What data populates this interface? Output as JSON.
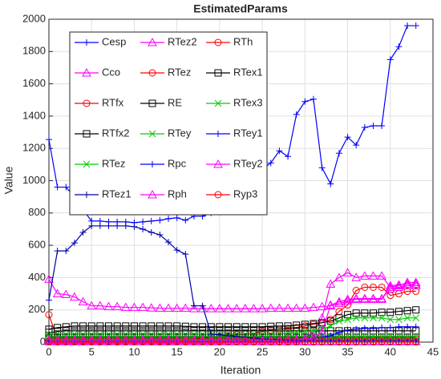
{
  "chart_data": {
    "type": "line",
    "title": "EstimatedParams",
    "x_label": "Iteration",
    "y_label": "Value",
    "x": [
      0,
      1,
      2,
      3,
      4,
      5,
      6,
      7,
      8,
      9,
      10,
      11,
      12,
      13,
      14,
      15,
      16,
      17,
      18,
      19,
      20,
      21,
      22,
      23,
      24,
      25,
      26,
      27,
      28,
      29,
      30,
      31,
      32,
      33,
      34,
      35,
      36,
      37,
      38,
      39,
      40,
      41,
      42,
      43
    ],
    "xlim": [
      0,
      45
    ],
    "xticks": [
      0,
      5,
      10,
      15,
      20,
      25,
      30,
      35,
      40,
      45
    ],
    "ylim": [
      0,
      2000
    ],
    "yticks": [
      0,
      200,
      400,
      600,
      800,
      1000,
      1200,
      1400,
      1600,
      1800,
      2000
    ],
    "grid": true,
    "legend": "upper left",
    "series": [
      {
        "name": "Cesp",
        "color": "#0000ff",
        "marker": "+",
        "values": [
          1255,
          960,
          960,
          900,
          820,
          750,
          750,
          745,
          745,
          745,
          740,
          745,
          750,
          755,
          765,
          770,
          755,
          780,
          780,
          800,
          805,
          820,
          845,
          880,
          945,
          1070,
          1110,
          1185,
          1150,
          1410,
          1490,
          1505,
          1080,
          980,
          1170,
          1270,
          1220,
          1330,
          1340,
          1340,
          1750,
          1830,
          1960,
          1960
        ]
      },
      {
        "name": "RTez2",
        "color": "#ff00ff",
        "marker": "^",
        "values": [
          10,
          10,
          10,
          10,
          10,
          12,
          12,
          12,
          12,
          12,
          12,
          12,
          12,
          12,
          12,
          12,
          12,
          12,
          12,
          12,
          12,
          14,
          14,
          14,
          15,
          15,
          16,
          18,
          20,
          25,
          30,
          60,
          150,
          360,
          400,
          430,
          400,
          410,
          410,
          410,
          340,
          350,
          370,
          370
        ]
      },
      {
        "name": "RTh",
        "color": "#ff0000",
        "marker": "o",
        "values": [
          170,
          20,
          15,
          12,
          10,
          10,
          10,
          10,
          10,
          10,
          10,
          10,
          10,
          10,
          10,
          10,
          15,
          20,
          25,
          30,
          35,
          40,
          45,
          50,
          55,
          65,
          75,
          80,
          85,
          90,
          100,
          110,
          120,
          140,
          190,
          230,
          320,
          340,
          340,
          340,
          290,
          300,
          315,
          315
        ]
      },
      {
        "name": "Cco",
        "color": "#ff00ff",
        "marker": "^",
        "values": [
          390,
          300,
          295,
          280,
          250,
          225,
          225,
          220,
          220,
          215,
          215,
          215,
          212,
          210,
          210,
          210,
          210,
          208,
          208,
          208,
          208,
          208,
          208,
          208,
          208,
          208,
          210,
          210,
          210,
          210,
          210,
          215,
          220,
          225,
          240,
          255,
          265,
          265,
          265,
          265,
          350,
          355,
          360,
          360
        ]
      },
      {
        "name": "RTez",
        "color": "#ff0000",
        "marker": "o",
        "values": [
          5,
          5,
          5,
          5,
          5,
          5,
          5,
          5,
          5,
          5,
          5,
          5,
          5,
          5,
          5,
          5,
          5,
          5,
          5,
          5,
          5,
          5,
          5,
          5,
          5,
          5,
          5,
          5,
          5,
          5,
          5,
          5,
          5,
          5,
          5,
          5,
          5,
          5,
          5,
          5,
          5,
          5,
          5,
          5
        ]
      },
      {
        "name": "RTex1",
        "color": "#000000",
        "marker": "s",
        "values": [
          80,
          90,
          95,
          100,
          100,
          100,
          100,
          100,
          100,
          100,
          100,
          100,
          100,
          100,
          100,
          100,
          98,
          95,
          95,
          95,
          95,
          95,
          95,
          95,
          95,
          95,
          98,
          100,
          100,
          105,
          110,
          115,
          120,
          130,
          150,
          170,
          180,
          180,
          180,
          185,
          185,
          190,
          195,
          200
        ]
      },
      {
        "name": "RTfx",
        "color": "#ff0000",
        "marker": "o",
        "values": [
          20,
          20,
          20,
          20,
          20,
          20,
          20,
          20,
          20,
          20,
          20,
          20,
          20,
          20,
          20,
          20,
          20,
          20,
          20,
          20,
          20,
          20,
          20,
          20,
          20,
          20,
          20,
          20,
          20,
          20,
          20,
          20,
          20,
          20,
          20,
          20,
          20,
          20,
          20,
          20,
          20,
          20,
          20,
          20
        ]
      },
      {
        "name": "RE",
        "color": "#000000",
        "marker": "s",
        "values": [
          60,
          65,
          70,
          70,
          70,
          70,
          70,
          70,
          70,
          70,
          70,
          70,
          70,
          70,
          70,
          70,
          70,
          70,
          70,
          70,
          70,
          70,
          70,
          70,
          70,
          70,
          70,
          70,
          70,
          70,
          70,
          70,
          70,
          70,
          70,
          70,
          70,
          70,
          70,
          70,
          70,
          70,
          70,
          70
        ]
      },
      {
        "name": "RTex3",
        "color": "#00cc00",
        "marker": "x",
        "values": [
          50,
          50,
          50,
          50,
          50,
          50,
          50,
          50,
          50,
          50,
          50,
          50,
          50,
          50,
          50,
          50,
          50,
          50,
          50,
          50,
          50,
          50,
          50,
          50,
          50,
          50,
          50,
          50,
          55,
          60,
          65,
          70,
          80,
          100,
          130,
          140,
          150,
          150,
          150,
          150,
          140,
          140,
          150,
          150
        ]
      },
      {
        "name": "RTfx2",
        "color": "#000000",
        "marker": "s",
        "values": [
          30,
          30,
          30,
          30,
          30,
          30,
          30,
          30,
          30,
          30,
          30,
          30,
          30,
          30,
          30,
          30,
          30,
          30,
          30,
          30,
          30,
          30,
          30,
          30,
          30,
          30,
          30,
          30,
          30,
          30,
          30,
          30,
          30,
          30,
          30,
          30,
          30,
          30,
          30,
          30,
          30,
          30,
          30,
          30
        ]
      },
      {
        "name": "RTey",
        "color": "#00cc00",
        "marker": "x",
        "values": [
          35,
          35,
          35,
          35,
          35,
          35,
          35,
          35,
          35,
          35,
          35,
          35,
          35,
          35,
          35,
          35,
          35,
          35,
          35,
          35,
          35,
          35,
          35,
          35,
          35,
          35,
          35,
          35,
          35,
          35,
          35,
          35,
          35,
          35,
          35,
          35,
          35,
          35,
          35,
          35,
          35,
          35,
          35,
          35
        ]
      },
      {
        "name": "RTey1",
        "color": "#0000ff",
        "marker": "+",
        "values": [
          10,
          10,
          10,
          10,
          10,
          10,
          10,
          10,
          10,
          10,
          10,
          10,
          10,
          10,
          10,
          10,
          10,
          10,
          10,
          10,
          10,
          10,
          10,
          10,
          10,
          10,
          10,
          12,
          14,
          16,
          20,
          25,
          30,
          40,
          60,
          75,
          80,
          85,
          85,
          90,
          90,
          95,
          95,
          95
        ]
      },
      {
        "name": "RTez",
        "color": "#00cc00",
        "marker": "x",
        "values": [
          10,
          10,
          10,
          10,
          10,
          10,
          10,
          10,
          10,
          10,
          10,
          10,
          10,
          10,
          10,
          10,
          10,
          10,
          10,
          10,
          10,
          10,
          10,
          10,
          10,
          10,
          10,
          10,
          10,
          10,
          10,
          10,
          10,
          10,
          10,
          10,
          10,
          10,
          10,
          10,
          10,
          10,
          10,
          10
        ]
      },
      {
        "name": "Rpc",
        "color": "#0000ff",
        "marker": "+",
        "values": [
          5,
          5,
          5,
          5,
          5,
          5,
          5,
          5,
          5,
          5,
          5,
          5,
          5,
          5,
          5,
          5,
          5,
          5,
          5,
          5,
          5,
          5,
          5,
          5,
          5,
          5,
          5,
          5,
          5,
          5,
          5,
          5,
          5,
          5,
          5,
          5,
          5,
          5,
          5,
          5,
          5,
          5,
          5,
          5
        ]
      },
      {
        "name": "RTey2",
        "color": "#ff00ff",
        "marker": "^",
        "values": [
          15,
          15,
          15,
          15,
          15,
          15,
          15,
          15,
          15,
          15,
          15,
          15,
          15,
          15,
          15,
          15,
          15,
          15,
          15,
          15,
          15,
          15,
          15,
          15,
          15,
          15,
          15,
          15,
          15,
          15,
          20,
          30,
          60,
          230,
          250,
          265,
          270,
          270,
          270,
          270,
          330,
          340,
          350,
          350
        ]
      },
      {
        "name": "RTez1",
        "color": "#0000aa",
        "marker": "+",
        "values": [
          260,
          565,
          565,
          615,
          680,
          720,
          720,
          720,
          720,
          720,
          715,
          700,
          680,
          665,
          620,
          570,
          545,
          225,
          225,
          50,
          45,
          40,
          35,
          30,
          25,
          20,
          18,
          15,
          12,
          10,
          10,
          10,
          10,
          10,
          10,
          10,
          10,
          10,
          10,
          10,
          10,
          10,
          10,
          10
        ]
      },
      {
        "name": "Rph",
        "color": "#ff00ff",
        "marker": "^",
        "values": [
          3,
          3,
          3,
          3,
          3,
          3,
          3,
          3,
          3,
          3,
          3,
          3,
          3,
          3,
          3,
          3,
          3,
          3,
          3,
          3,
          3,
          3,
          3,
          3,
          3,
          3,
          3,
          3,
          3,
          3,
          3,
          3,
          3,
          3,
          3,
          3,
          3,
          3,
          3,
          3,
          3,
          3,
          3,
          3
        ]
      },
      {
        "name": "Ryp3",
        "color": "#ff0000",
        "marker": "o",
        "values": [
          2,
          2,
          2,
          2,
          2,
          2,
          2,
          2,
          2,
          2,
          2,
          2,
          2,
          2,
          2,
          2,
          2,
          2,
          2,
          2,
          2,
          2,
          2,
          2,
          2,
          2,
          2,
          2,
          2,
          2,
          2,
          2,
          2,
          2,
          2,
          2,
          2,
          2,
          2,
          2,
          2,
          2,
          2,
          2
        ]
      }
    ]
  }
}
